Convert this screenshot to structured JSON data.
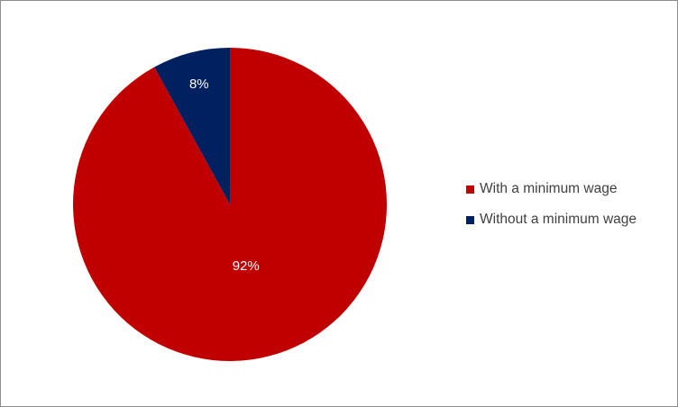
{
  "chart_data": {
    "type": "pie",
    "title": "",
    "slices": [
      {
        "label": "With a minimum wage",
        "value": 92,
        "value_label": "92%",
        "color": "#c00000"
      },
      {
        "label": "Without a minimum wage",
        "value": 8,
        "value_label": "8%",
        "color": "#002060"
      }
    ],
    "start_angle_deg": 0,
    "direction": "clockwise",
    "legend": {
      "placement": "right",
      "items": [
        {
          "label": "With a minimum wage",
          "color": "#c00000"
        },
        {
          "label": "Without a minimum wage",
          "color": "#002060"
        }
      ]
    }
  }
}
